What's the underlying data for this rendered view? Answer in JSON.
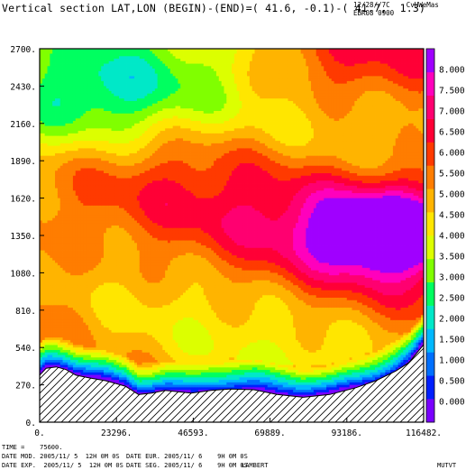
{
  "header": {
    "title": "Vertical section LAT,LON (BEGIN)-(END)=( 41.6, -0.1)-( 41.7,  1.3)",
    "right_line1": "12/28//7C    CvHWeMas",
    "right_line2": "EBR08 0900"
  },
  "footer": {
    "time": "TIME =    75600.",
    "line2_left": "DATE MOD. 2005/11/ 5  12H 0M 0S",
    "line2_right": "DATE EUR. 2005/11/ 6    9H 0M 0S",
    "line3_left": "DATE EXP.  2005/11/ 5  12H 0M 0S",
    "line3_right": "DATE SEG. 2005/11/ 6    9H 0M 0S",
    "line3_proj": "LAMBERT",
    "variable": "MUTVT"
  },
  "colors": {
    "levels": [
      "#7a00ff",
      "#0020ff",
      "#0070ff",
      "#00b8ff",
      "#00e8c8",
      "#00ff60",
      "#80ff00",
      "#dcff00",
      "#ffe600",
      "#ffb400",
      "#ff7d00",
      "#ff3a00",
      "#ff0036",
      "#ff0070",
      "#ff00bc",
      "#a000ff"
    ],
    "terrain_hatch": "#000000"
  },
  "chart_data": {
    "type": "heatmap",
    "subtype": "filled-contour vertical cross-section",
    "x_ticks": [
      "0.",
      "23296.",
      "46593.",
      "69889.",
      "93186.",
      "116482."
    ],
    "y_ticks": [
      "0.",
      "270.",
      "540.",
      "810.",
      "1080.",
      "1350.",
      "1620.",
      "1890.",
      "2160.",
      "2430.",
      "2700."
    ],
    "xlim": [
      0,
      116482
    ],
    "ylim": [
      0,
      2700
    ],
    "colorbar": {
      "labels": [
        "0.000",
        "0.500",
        "1.000",
        "1.500",
        "2.000",
        "2.500",
        "3.000",
        "3.500",
        "4.000",
        "4.500",
        "5.000",
        "5.500",
        "6.000",
        "6.500",
        "7.000",
        "7.500",
        "8.000"
      ],
      "range": [
        -0.5,
        8.5
      ]
    },
    "terrain": {
      "x": [
        0,
        2000,
        5000,
        8000,
        11000,
        15000,
        20000,
        26000,
        30000,
        34000,
        38000,
        42000,
        46000,
        52000,
        58000,
        65000,
        72000,
        80000,
        88000,
        96000,
        102000,
        108000,
        112000,
        116482
      ],
      "height": [
        340,
        390,
        400,
        380,
        340,
        320,
        300,
        260,
        200,
        210,
        230,
        220,
        210,
        230,
        240,
        235,
        200,
        180,
        200,
        250,
        300,
        370,
        430,
        560
      ]
    }
  }
}
